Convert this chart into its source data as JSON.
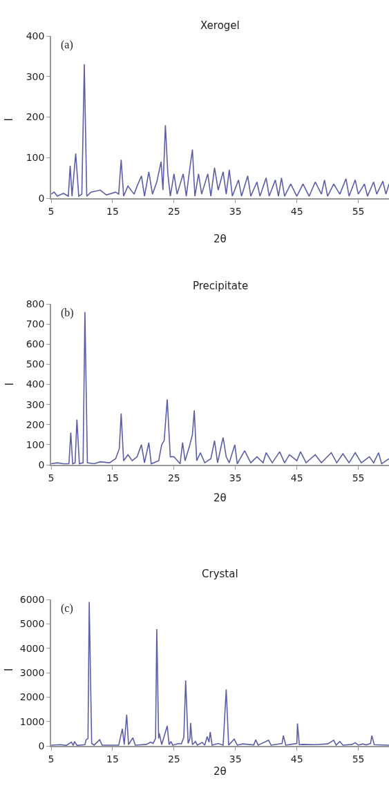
{
  "chart_data": [
    {
      "type": "line",
      "title": "Xerogel",
      "xlabel": "2θ",
      "ylabel": "I",
      "annotations": [
        "(a)"
      ],
      "xlim": [
        5,
        60
      ],
      "xticks": [
        5,
        15,
        25,
        35,
        45,
        55
      ],
      "ylim": [
        0,
        400
      ],
      "yticks": [
        0,
        100,
        200,
        300,
        400
      ],
      "x": [
        5,
        5.5,
        6,
        7,
        7.8,
        8.1,
        8.4,
        9.0,
        9.5,
        10.0,
        10.4,
        10.8,
        11.5,
        13,
        14,
        15.5,
        16.0,
        16.4,
        16.8,
        17.5,
        18.5,
        19,
        19.7,
        20.2,
        20.9,
        21.5,
        22.2,
        22.9,
        23.2,
        23.6,
        24.0,
        24.4,
        25,
        25.5,
        26.5,
        27,
        27.5,
        28.0,
        28.4,
        29,
        29.5,
        30.5,
        31,
        31.6,
        32.2,
        33,
        33.5,
        34,
        34.5,
        35.5,
        36,
        37,
        37.5,
        38.5,
        39,
        40,
        40.5,
        41.5,
        42,
        42.5,
        43,
        44,
        45,
        46,
        47,
        48,
        49,
        49.5,
        50,
        51,
        52,
        53,
        53.5,
        54.5,
        55,
        56,
        56.5,
        57.5,
        58,
        59,
        59.5,
        60
      ],
      "series": [
        {
          "color": "#5b5ea6",
          "values": [
            10,
            15,
            5,
            12,
            5,
            80,
            5,
            110,
            5,
            10,
            330,
            5,
            15,
            20,
            8,
            15,
            10,
            95,
            5,
            30,
            10,
            30,
            55,
            5,
            65,
            10,
            40,
            90,
            20,
            180,
            60,
            5,
            60,
            10,
            60,
            5,
            65,
            120,
            5,
            60,
            10,
            60,
            5,
            75,
            20,
            65,
            10,
            70,
            5,
            45,
            5,
            55,
            5,
            40,
            5,
            50,
            5,
            45,
            5,
            50,
            5,
            35,
            5,
            35,
            5,
            40,
            10,
            45,
            5,
            35,
            10,
            48,
            5,
            45,
            10,
            35,
            5,
            40,
            10,
            42,
            10,
            35
          ]
        }
      ]
    },
    {
      "type": "line",
      "title": "Precipitate",
      "xlabel": "2θ",
      "ylabel": "I",
      "annotations": [
        "(b)"
      ],
      "xlim": [
        5,
        60
      ],
      "xticks": [
        5,
        15,
        25,
        35,
        45,
        55
      ],
      "ylim": [
        0,
        800
      ],
      "yticks": [
        0,
        100,
        200,
        300,
        400,
        500,
        600,
        700,
        800
      ],
      "x": [
        5,
        6,
        7,
        7.9,
        8.2,
        8.5,
        8.9,
        9.2,
        9.6,
        10.2,
        10.5,
        10.9,
        12,
        13,
        14.5,
        15.5,
        16.1,
        16.4,
        16.8,
        17.5,
        18.2,
        19,
        19.7,
        20.2,
        20.9,
        21.3,
        22.5,
        23,
        23.4,
        23.9,
        24.4,
        25,
        26,
        26.4,
        26.8,
        27.5,
        28.0,
        28.3,
        28.7,
        29.3,
        30,
        31,
        31.6,
        32.1,
        32.8,
        33.0,
        33.5,
        34,
        34.9,
        35.3,
        36.5,
        37.5,
        38.5,
        39.5,
        40.0,
        41,
        42.2,
        43,
        43.8,
        45,
        45.6,
        46.5,
        48,
        49,
        50.6,
        51.5,
        52.5,
        53.5,
        54.5,
        55.5,
        56.8,
        57.5,
        58.3,
        58.8,
        60
      ],
      "series": [
        {
          "color": "#5b5ea6",
          "values": [
            5,
            10,
            5,
            5,
            160,
            5,
            10,
            225,
            5,
            10,
            760,
            10,
            5,
            15,
            10,
            30,
            80,
            255,
            20,
            50,
            20,
            40,
            100,
            10,
            110,
            5,
            20,
            100,
            120,
            325,
            40,
            40,
            5,
            110,
            20,
            90,
            150,
            270,
            20,
            60,
            10,
            30,
            120,
            10,
            110,
            135,
            40,
            10,
            100,
            5,
            70,
            10,
            40,
            10,
            60,
            10,
            65,
            10,
            50,
            20,
            65,
            10,
            50,
            10,
            60,
            10,
            55,
            10,
            60,
            10,
            40,
            10,
            60,
            5,
            30
          ]
        }
      ]
    },
    {
      "type": "line",
      "title": "Crystal",
      "xlabel": "2θ",
      "ylabel": "I",
      "annotations": [
        "(c)"
      ],
      "xlim": [
        5,
        60
      ],
      "xticks": [
        5,
        15,
        25,
        35,
        45,
        55
      ],
      "ylim": [
        0,
        6000
      ],
      "yticks": [
        0,
        1000,
        2000,
        3000,
        4000,
        5000,
        6000
      ],
      "x": [
        5,
        6.5,
        7.5,
        8.3,
        8.6,
        8.8,
        9.2,
        10.5,
        10.7,
        11.0,
        11.2,
        11.6,
        12,
        12.9,
        13.3,
        16,
        16.6,
        16.9,
        17.3,
        17.6,
        18.3,
        18.7,
        20.5,
        21.2,
        21.6,
        22.0,
        22.2,
        22.5,
        22.6,
        23.0,
        23.9,
        24.2,
        24.5,
        24.8,
        25.8,
        26.2,
        26.6,
        26.9,
        27.3,
        27.6,
        27.7,
        28.0,
        28.5,
        28.8,
        29.6,
        30.0,
        30.4,
        30.7,
        30.9,
        31.2,
        32.2,
        33,
        33.5,
        33.9,
        34.8,
        35.3,
        36.2,
        38,
        38.3,
        38.7,
        40.4,
        40.8,
        42.6,
        42.8,
        43.2,
        44,
        45.0,
        45.1,
        45.4,
        46,
        48,
        50.0,
        51.0,
        51.4,
        52.0,
        52.5,
        54,
        54.5,
        55,
        55.7,
        56.3,
        57.0,
        57.2,
        57.6,
        60
      ],
      "series": [
        {
          "color": "#5b5ea6",
          "values": [
            30,
            50,
            20,
            150,
            20,
            180,
            20,
            50,
            250,
            300,
            5900,
            100,
            30,
            250,
            30,
            30,
            700,
            50,
            1280,
            50,
            330,
            30,
            60,
            150,
            100,
            300,
            4780,
            300,
            520,
            50,
            820,
            50,
            180,
            30,
            100,
            80,
            350,
            2680,
            100,
            300,
            940,
            50,
            180,
            30,
            140,
            30,
            380,
            150,
            570,
            30,
            100,
            30,
            2310,
            30,
            280,
            30,
            80,
            40,
            250,
            30,
            230,
            30,
            100,
            420,
            30,
            60,
            100,
            920,
            50,
            60,
            50,
            80,
            230,
            30,
            180,
            30,
            60,
            130,
            30,
            80,
            40,
            100,
            420,
            50,
            30
          ]
        }
      ]
    }
  ]
}
